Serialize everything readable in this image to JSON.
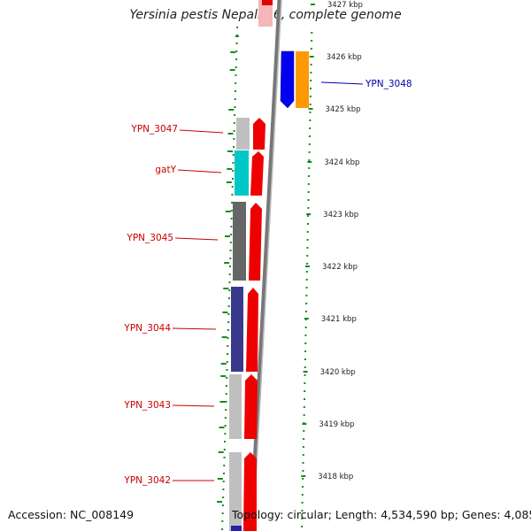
{
  "title": "Yersinia pestis Nepal516, complete genome",
  "footer": {
    "accession_label": "Accession: NC_008149",
    "summary": "Topology: circular; Length: 4,534,590 bp; Genes: 4,085"
  },
  "colors": {
    "forward_strand": "#ff0000",
    "reverse_strand": "#0000ff",
    "tick": "#1a8a1a",
    "backbone": "#888888",
    "label_red": "#cc0000",
    "label_blue": "#0000aa"
  },
  "ticks": [
    {
      "label": "3427 kbp"
    },
    {
      "label": "3426 kbp"
    },
    {
      "label": "3425 kbp"
    },
    {
      "label": "3424 kbp"
    },
    {
      "label": "3423 kbp"
    },
    {
      "label": "3422 kbp"
    },
    {
      "label": "3421 kbp"
    },
    {
      "label": "3420 kbp"
    },
    {
      "label": "3419 kbp"
    },
    {
      "label": "3418 kbp"
    }
  ],
  "genes": [
    {
      "label": "YPN_3048",
      "strand": "reverse"
    },
    {
      "label": "YPN_3047",
      "strand": "forward"
    },
    {
      "label": "gatY",
      "strand": "forward"
    },
    {
      "label": "YPN_3045",
      "strand": "forward"
    },
    {
      "label": "YPN_3044",
      "strand": "forward"
    },
    {
      "label": "YPN_3043",
      "strand": "forward"
    },
    {
      "label": "YPN_3042",
      "strand": "forward"
    }
  ]
}
